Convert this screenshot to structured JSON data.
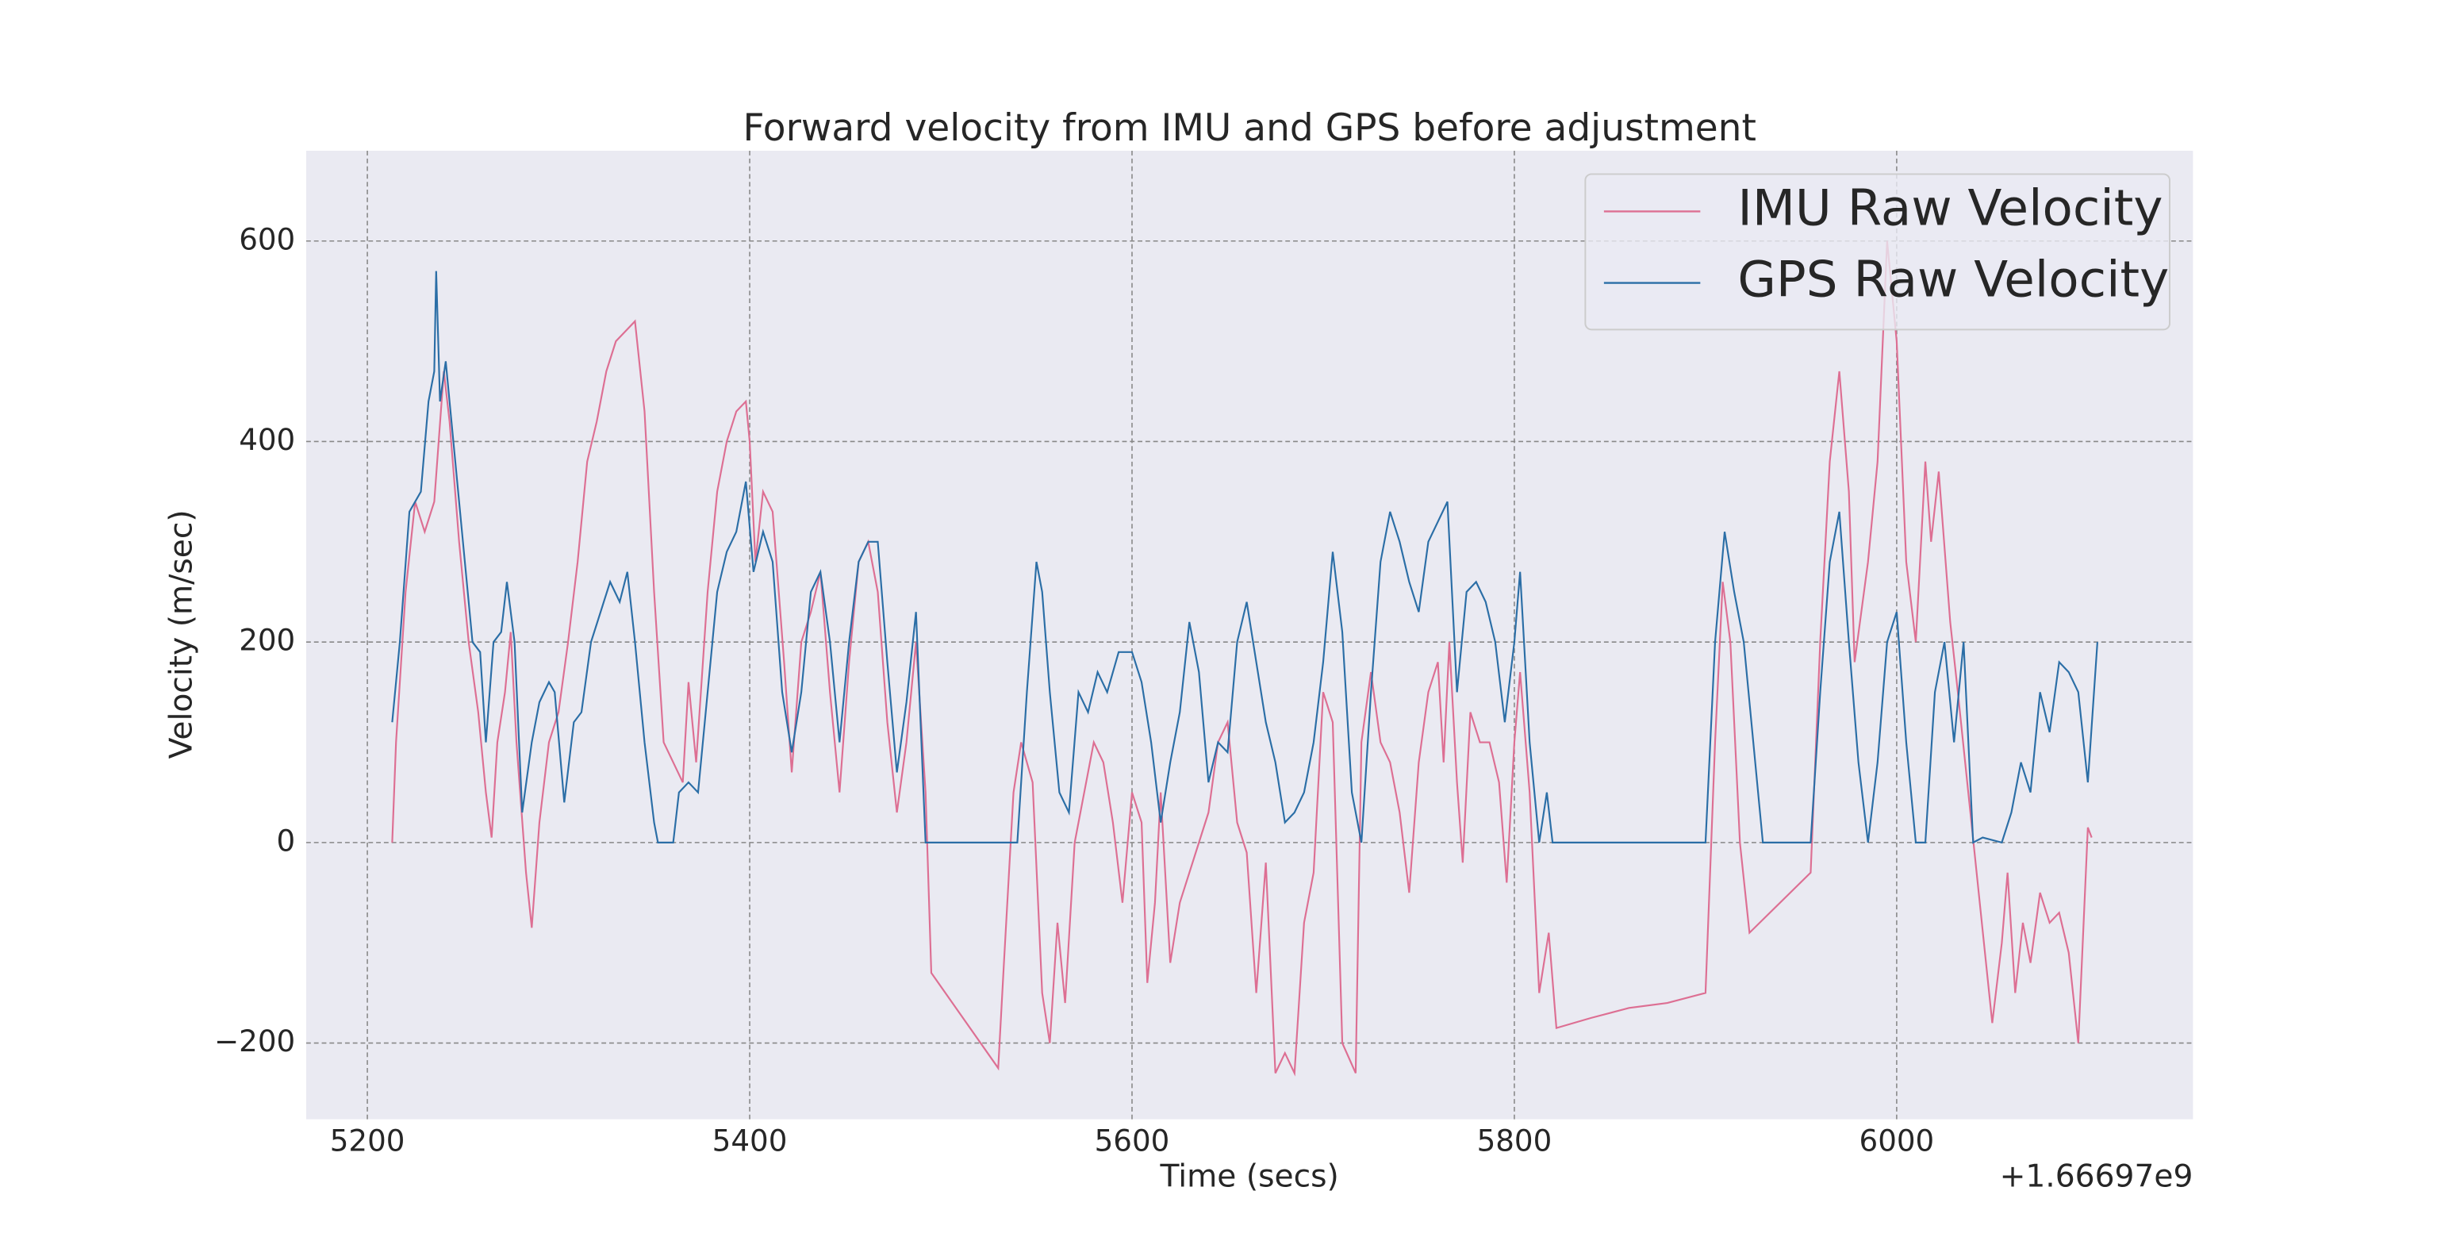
{
  "chart_data": {
    "type": "line",
    "title": "Forward velocity from IMU and GPS before adjustment",
    "x_label": "Time (secs)",
    "y_label": "Velocity (m/sec)",
    "x_offset_label": "+1.66697e9",
    "xlim": [
      5168,
      6155
    ],
    "ylim": [
      -276,
      690
    ],
    "xticks": [
      5200,
      5400,
      5600,
      5800,
      6000
    ],
    "yticks": [
      {
        "value": -200,
        "label": "−200"
      },
      0,
      200,
      400,
      600
    ],
    "grid": true,
    "legend": "upper right",
    "series": [
      {
        "name": "IMU Raw Velocity",
        "color": "#dd6f93",
        "x": [
          5213,
          5215,
          5220,
          5225,
          5230,
          5235,
          5240,
          5243,
          5248,
          5253,
          5258,
          5262,
          5265,
          5268,
          5272,
          5275,
          5278,
          5283,
          5286,
          5290,
          5295,
          5300,
          5305,
          5310,
          5315,
          5320,
          5325,
          5330,
          5335,
          5340,
          5345,
          5350,
          5355,
          5365,
          5368,
          5372,
          5378,
          5383,
          5388,
          5393,
          5398,
          5400,
          5403,
          5407,
          5412,
          5418,
          5422,
          5427,
          5432,
          5437,
          5442,
          5447,
          5452,
          5457,
          5462,
          5467,
          5472,
          5477,
          5482,
          5487,
          5492,
          5495,
          5530,
          5533,
          5538,
          5542,
          5548,
          5553,
          5557,
          5561,
          5565,
          5570,
          5575,
          5580,
          5585,
          5590,
          5595,
          5600,
          5605,
          5608,
          5612,
          5615,
          5620,
          5625,
          5630,
          5635,
          5640,
          5645,
          5650,
          5655,
          5660,
          5665,
          5670,
          5675,
          5680,
          5685,
          5690,
          5695,
          5700,
          5705,
          5710,
          5717,
          5720,
          5725,
          5730,
          5735,
          5740,
          5745,
          5750,
          5755,
          5760,
          5763,
          5766,
          5770,
          5773,
          5777,
          5782,
          5787,
          5792,
          5796,
          5800,
          5803,
          5808,
          5813,
          5818,
          5822,
          5840,
          5860,
          5880,
          5900,
          5905,
          5909,
          5913,
          5918,
          5923,
          5955,
          5960,
          5965,
          5970,
          5975,
          5978,
          5985,
          5990,
          5995,
          6000,
          6005,
          6010,
          6015,
          6018,
          6022,
          6028,
          6032,
          6050,
          6055,
          6058,
          6062,
          6066,
          6070,
          6075,
          6080,
          6085,
          6090,
          6095,
          6100,
          6102
        ],
        "values": [
          0,
          100,
          250,
          340,
          310,
          340,
          470,
          420,
          300,
          200,
          130,
          50,
          5,
          100,
          150,
          210,
          100,
          -30,
          -85,
          20,
          100,
          130,
          200,
          280,
          380,
          420,
          470,
          500,
          510,
          520,
          430,
          250,
          100,
          60,
          160,
          80,
          250,
          350,
          400,
          430,
          440,
          400,
          280,
          350,
          330,
          180,
          70,
          200,
          230,
          270,
          150,
          50,
          180,
          280,
          300,
          250,
          120,
          30,
          100,
          200,
          50,
          -130,
          -225,
          -120,
          50,
          100,
          60,
          -150,
          -200,
          -80,
          -160,
          0,
          50,
          100,
          80,
          20,
          -60,
          50,
          20,
          -140,
          -60,
          50,
          -120,
          -60,
          -30,
          0,
          30,
          100,
          120,
          20,
          -10,
          -150,
          -20,
          -230,
          -210,
          -230,
          -80,
          -30,
          150,
          120,
          -200,
          -230,
          100,
          170,
          100,
          80,
          30,
          -50,
          80,
          150,
          180,
          80,
          200,
          60,
          -20,
          130,
          100,
          100,
          60,
          -40,
          100,
          170,
          50,
          -150,
          -90,
          -185,
          -175,
          -165,
          -160,
          -150,
          100,
          260,
          200,
          0,
          -90,
          -30,
          200,
          380,
          470,
          350,
          180,
          280,
          380,
          600,
          500,
          280,
          200,
          380,
          300,
          370,
          220,
          150,
          -180,
          -100,
          -30,
          -150,
          -80,
          -120,
          -50,
          -80,
          -70,
          -110,
          -200,
          15,
          5
        ]
      },
      {
        "name": "GPS Raw Velocity",
        "color": "#2b6ea6",
        "x": [
          5213,
          5217,
          5222,
          5228,
          5232,
          5235,
          5236,
          5238,
          5241,
          5245,
          5250,
          5255,
          5259,
          5262,
          5266,
          5270,
          5273,
          5277,
          5281,
          5286,
          5290,
          5295,
          5298,
          5303,
          5308,
          5312,
          5317,
          5322,
          5327,
          5332,
          5336,
          5340,
          5345,
          5350,
          5352,
          5360,
          5363,
          5368,
          5373,
          5378,
          5383,
          5388,
          5393,
          5398,
          5402,
          5407,
          5412,
          5417,
          5422,
          5427,
          5432,
          5437,
          5442,
          5447,
          5452,
          5457,
          5462,
          5467,
          5472,
          5477,
          5482,
          5487,
          5492,
          5540,
          5545,
          5550,
          5553,
          5557,
          5562,
          5567,
          5572,
          5577,
          5582,
          5587,
          5593,
          5600,
          5605,
          5610,
          5615,
          5620,
          5625,
          5630,
          5635,
          5640,
          5645,
          5650,
          5655,
          5660,
          5665,
          5670,
          5675,
          5680,
          5685,
          5690,
          5695,
          5700,
          5705,
          5710,
          5715,
          5720,
          5725,
          5730,
          5735,
          5740,
          5745,
          5750,
          5755,
          5760,
          5765,
          5770,
          5775,
          5780,
          5785,
          5790,
          5795,
          5800,
          5803,
          5808,
          5813,
          5817,
          5820,
          5900,
          5905,
          5910,
          5915,
          5920,
          5925,
          5930,
          5955,
          5960,
          5965,
          5970,
          5975,
          5980,
          5985,
          5990,
          5995,
          6000,
          6005,
          6010,
          6015,
          6020,
          6025,
          6030,
          6035,
          6040,
          6045,
          6055,
          6060,
          6065,
          6070,
          6075,
          6080,
          6085,
          6090,
          6095,
          6100,
          6105
        ],
        "values": [
          120,
          200,
          330,
          350,
          440,
          470,
          570,
          440,
          480,
          400,
          300,
          200,
          190,
          100,
          200,
          210,
          260,
          200,
          30,
          100,
          140,
          160,
          150,
          40,
          120,
          130,
          200,
          230,
          260,
          240,
          270,
          200,
          100,
          20,
          0,
          0,
          50,
          60,
          50,
          150,
          250,
          290,
          310,
          360,
          270,
          310,
          280,
          150,
          90,
          150,
          250,
          270,
          200,
          100,
          200,
          280,
          300,
          300,
          180,
          70,
          140,
          230,
          0,
          0,
          150,
          280,
          250,
          150,
          50,
          30,
          150,
          130,
          170,
          150,
          190,
          190,
          160,
          100,
          20,
          80,
          130,
          220,
          170,
          60,
          100,
          90,
          200,
          240,
          180,
          120,
          80,
          20,
          30,
          50,
          100,
          180,
          290,
          210,
          50,
          0,
          150,
          280,
          330,
          300,
          260,
          230,
          300,
          320,
          340,
          150,
          250,
          260,
          240,
          200,
          120,
          200,
          270,
          100,
          0,
          50,
          0,
          0,
          200,
          310,
          250,
          200,
          100,
          0,
          0,
          150,
          280,
          330,
          200,
          80,
          0,
          80,
          200,
          230,
          100,
          0,
          0,
          150,
          200,
          100,
          200,
          0,
          5,
          0,
          30,
          80,
          50,
          150,
          110,
          180,
          170,
          150,
          60,
          200
        ]
      }
    ]
  }
}
